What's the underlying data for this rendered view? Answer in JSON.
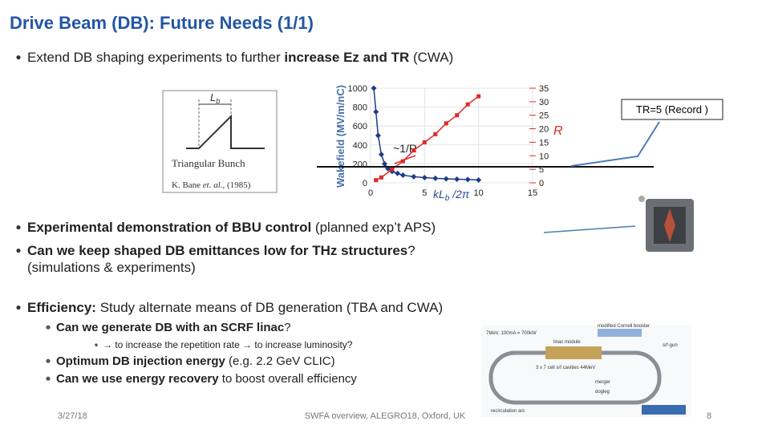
{
  "header": {
    "title": "Drive Beam (DB): Future Needs  (1/1)"
  },
  "lines": [
    {
      "level": 1,
      "parts": [
        {
          "text": "Extend DB shaping experiments to further ",
          "bold": false
        },
        {
          "text": "increase Ez and TR",
          "bold": true
        },
        {
          "text": "   (CWA)",
          "bold": false
        }
      ]
    },
    {
      "level": 1,
      "parts": [
        {
          "text": "Experimental demonstration of BBU control",
          "bold": true
        },
        {
          "text": " (planned exp’t APS)",
          "bold": false
        }
      ]
    },
    {
      "level": 1,
      "parts": [
        {
          "text": "Can we keep shaped DB emittances low for THz structures",
          "bold": true
        },
        {
          "text": "?",
          "bold": false
        }
      ]
    },
    {
      "level": 0,
      "parts": [
        {
          "text": "(simulations & experiments)",
          "bold": false
        }
      ]
    },
    {
      "level": 1,
      "parts": [
        {
          "text": "Efficiency:",
          "bold": true
        },
        {
          "text": " Study alternate means of DB generation (TBA and CWA)",
          "bold": false
        }
      ]
    },
    {
      "level": 2,
      "parts": [
        {
          "text": "Can we generate DB with an SCRF linac",
          "bold": true
        },
        {
          "text": "?",
          "bold": false
        }
      ]
    },
    {
      "level": 3,
      "parts": [
        {
          "text": "→ to increase the repetition rate → to increase luminosity?",
          "bold": false
        }
      ]
    },
    {
      "level": 2,
      "parts": [
        {
          "text": "Optimum DB injection energy",
          "bold": true
        },
        {
          "text": " (e.g. 2.2 GeV CLIC)",
          "bold": false
        }
      ]
    },
    {
      "level": 2,
      "parts": [
        {
          "text": "Can we use energy recovery",
          "bold": true
        },
        {
          "text": " to boost overall efficiency",
          "bold": false
        }
      ]
    }
  ],
  "bunch": {
    "length_main": "L",
    "length_sub": "b",
    "caption": "Triangular Bunch",
    "reference": [
      "K. Bane ",
      "et. al.",
      ", (1985)"
    ]
  },
  "record_box": "TR=5 (Record )",
  "diagram_labels": [
    "7MeV, 100mA = 700kW",
    "linac module",
    "3 x 7 cell srf cavities 44MeV",
    "modified Cornell booster",
    "srf-gun",
    "merger",
    "dogleg",
    "recirculation arc"
  ],
  "footer": {
    "date": "3/27/18",
    "event": "SWFA overview, ALEGRO18, Oxford, UK",
    "page": "8"
  },
  "chart_data": {
    "type": "line",
    "y_label": "Wakefield (MV/m/nC)",
    "x_label": [
      "kL",
      "b",
      " /2π"
    ],
    "annotation": "~1/R",
    "xlim": [
      0,
      15
    ],
    "xticks": [
      0,
      5,
      10,
      15
    ],
    "ylim": [
      0,
      1000
    ],
    "yticks": [
      0,
      200,
      400,
      600,
      800,
      1000
    ],
    "y2lim": [
      0,
      35
    ],
    "y2ticks": [
      0,
      5,
      10,
      15,
      20,
      25,
      30,
      35
    ],
    "grid": true,
    "series": [
      {
        "color": "#1f3a8a",
        "x": [
          0.3,
          0.5,
          0.7,
          1,
          1.3,
          1.6,
          2,
          2.5,
          3,
          4,
          5,
          6,
          7,
          8,
          9,
          10
        ],
        "values": [
          1000,
          750,
          500,
          300,
          200,
          150,
          120,
          100,
          80,
          65,
          55,
          48,
          42,
          38,
          35,
          30
        ]
      },
      {
        "name": "R",
        "color": "#e02828",
        "axis": "y2",
        "x": [
          0.5,
          1,
          2,
          3,
          4,
          5,
          6,
          7,
          8,
          9,
          10
        ],
        "values": [
          1,
          2,
          5,
          8,
          12,
          15,
          18,
          22,
          25,
          29,
          32
        ]
      }
    ]
  }
}
